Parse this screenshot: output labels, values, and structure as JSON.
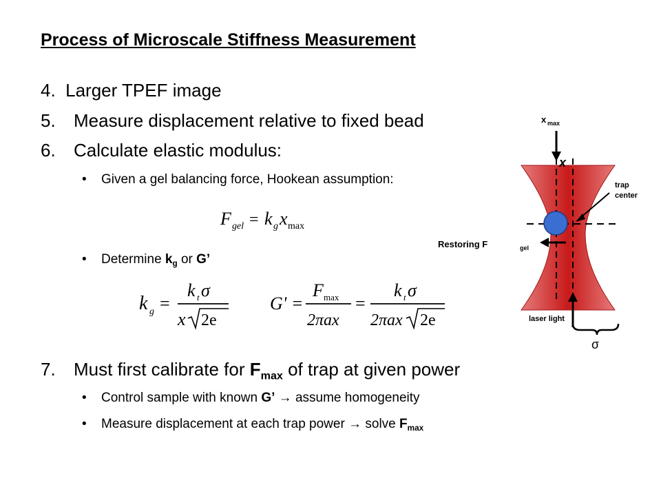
{
  "title": "Process of Microscale Stiffness Measurement",
  "steps": [
    {
      "number": "4.",
      "text": "Larger TPEF image"
    },
    {
      "number": "5.",
      "text": "Measure displacement relative to fixed bead"
    },
    {
      "number": "6.",
      "text": "Calculate elastic modulus:"
    },
    {
      "number": "7.",
      "text_before": "Must first calibrate for ",
      "bold": "F",
      "bold_sub": "max",
      "text_after": " of trap at given power"
    }
  ],
  "bullets": {
    "gel_force": "Given a gel balancing force, Hookean assumption:",
    "determine_prefix": "Determine ",
    "determine_k": "k",
    "determine_k_sub": "g",
    "determine_or": " or ",
    "determine_g": "G’",
    "control_prefix": "Control sample with known ",
    "control_g": "G’",
    "control_suffix": " assume homogeneity",
    "measure_prefix": "Measure displacement at each trap power ",
    "measure_suffix": " solve ",
    "measure_f": "F",
    "measure_f_sub": "max",
    "bullet_char": "•",
    "arrow_char": "→"
  },
  "equations": {
    "fgel": {
      "lhs": "F",
      "lhs_sub": "gel",
      "eq": "=",
      "k": "k",
      "k_sub": "g",
      "x": "x",
      "x_sub": "max"
    },
    "kg": {
      "lhs": "k",
      "lhs_sub": "g",
      "num": "k",
      "num_sub": "t",
      "sigma": "σ",
      "den_x": "x",
      "den_root": "2e"
    },
    "gprime": {
      "lhs": "G' =",
      "num1": "F",
      "num1_sub": "max",
      "den1": "2πax",
      "num2": "k",
      "num2_sub": "t",
      "sigma": "σ",
      "den2": "2πax",
      "den2_root": "2e",
      "eq": "="
    }
  },
  "diagram": {
    "x_max_label": "x",
    "x_max_sub": "max",
    "x_label": "x",
    "trap_center_label_1": "trap",
    "trap_center_label_2": "center",
    "restoring_label": "Restoring F",
    "restoring_sub": "gel",
    "laser_label": "laser light",
    "sigma_label": "σ",
    "beam_color": "#d42a2a",
    "bead_color": "#3a6ed0"
  }
}
